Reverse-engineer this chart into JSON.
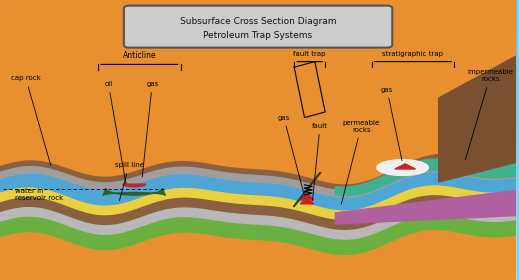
{
  "title_line1": "Subsurface Cross Section Diagram",
  "title_line2": "Petroleum Trap Systems",
  "title_box_color": "#c8c8c8",
  "title_text_color": "#222222",
  "sky_top": "#5bbfdc",
  "sky_bottom": "#a8ddef",
  "ground_color": "#f0a830",
  "labels": {
    "anticline": "Anticline",
    "fault_trap": "fault trap",
    "strat_trap": "stratigraphic trap",
    "cap_rock": "cap rock",
    "oil": "oil",
    "gas_anticline": "gas",
    "water": "water in\nreservoir rock",
    "spill_line": "spill line",
    "gas_fault": "gas",
    "fault": "fault",
    "permeable": "permeable\nrocks",
    "gas_strat": "gas",
    "impermeable": "impermeable\nrocks"
  },
  "layer_colors": {
    "gray_cap": "#9e9e9e",
    "blue": "#4da6d6",
    "yellow": "#e8d040",
    "brown": "#8b6040",
    "gray_light": "#b0b0b0",
    "green": "#6ab040",
    "dark_green": "#2d6020",
    "red": "#cc2020",
    "white_gas": "#f0f0f0",
    "teal": "#40b090",
    "purple": "#b060a0",
    "orange_ground": "#e89030"
  }
}
